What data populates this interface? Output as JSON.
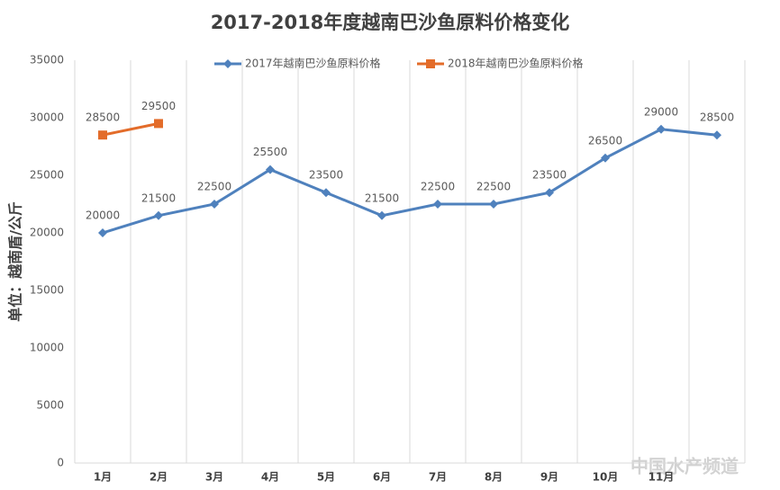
{
  "chart_data": {
    "type": "line",
    "title": "2017-2018年度越南巴沙鱼原料价格变化",
    "y_label": "单位：越南盾/公斤",
    "categories": [
      "1月",
      "2月",
      "3月",
      "4月",
      "5月",
      "6月",
      "7月",
      "8月",
      "9月",
      "10月",
      "11月",
      null
    ],
    "series": [
      {
        "name": "2017年越南巴沙鱼原料价格",
        "color": "#4f81bd",
        "marker": "diamond",
        "values": [
          20000,
          21500,
          22500,
          25500,
          23500,
          21500,
          22500,
          22500,
          23500,
          26500,
          29000,
          28500
        ]
      },
      {
        "name": "2018年越南巴沙鱼原料价格",
        "color": "#e36c2a",
        "marker": "square",
        "values": [
          28500,
          29500,
          null,
          null,
          null,
          null,
          null,
          null,
          null,
          null,
          null,
          null
        ]
      }
    ],
    "ylim": [
      0,
      35000
    ],
    "yticks": [
      0,
      5000,
      10000,
      15000,
      20000,
      25000,
      30000,
      35000
    ],
    "grid": "vertical",
    "legend": "top",
    "watermark": "中国水产频道"
  }
}
